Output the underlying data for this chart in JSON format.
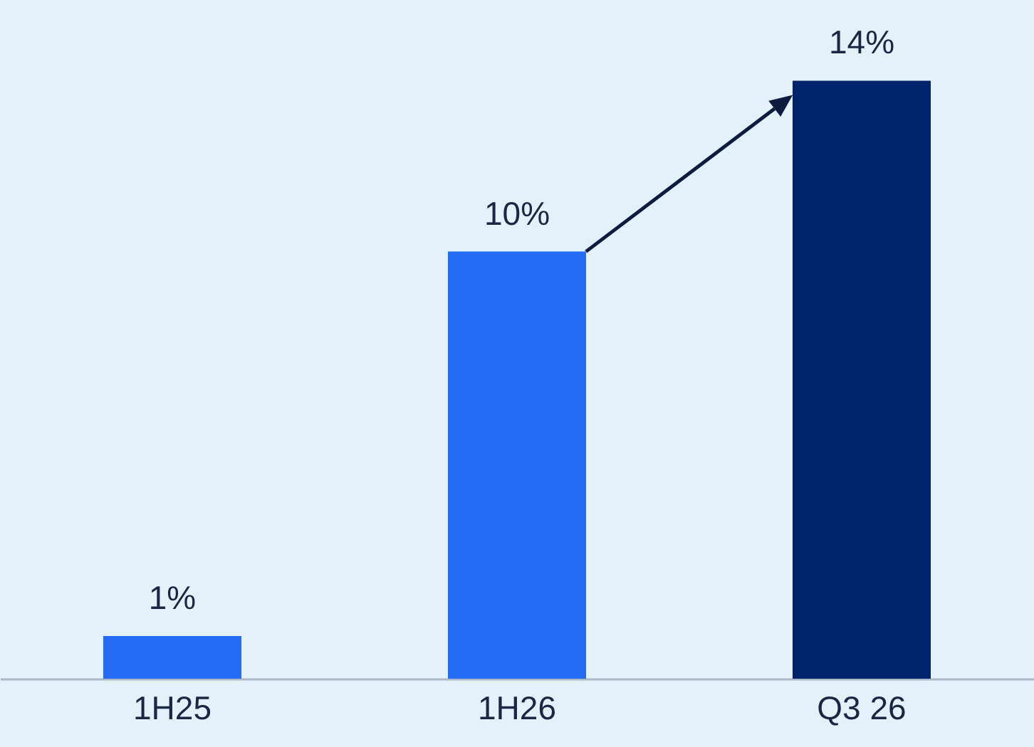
{
  "chart_data": {
    "type": "bar",
    "categories": [
      "1H25",
      "1H26",
      "Q3 26"
    ],
    "values": [
      1,
      10,
      14
    ],
    "colors": [
      "#256cf5",
      "#256cf5",
      "#00246b"
    ],
    "value_labels": [
      "1%",
      "10%",
      "14%"
    ]
  }
}
